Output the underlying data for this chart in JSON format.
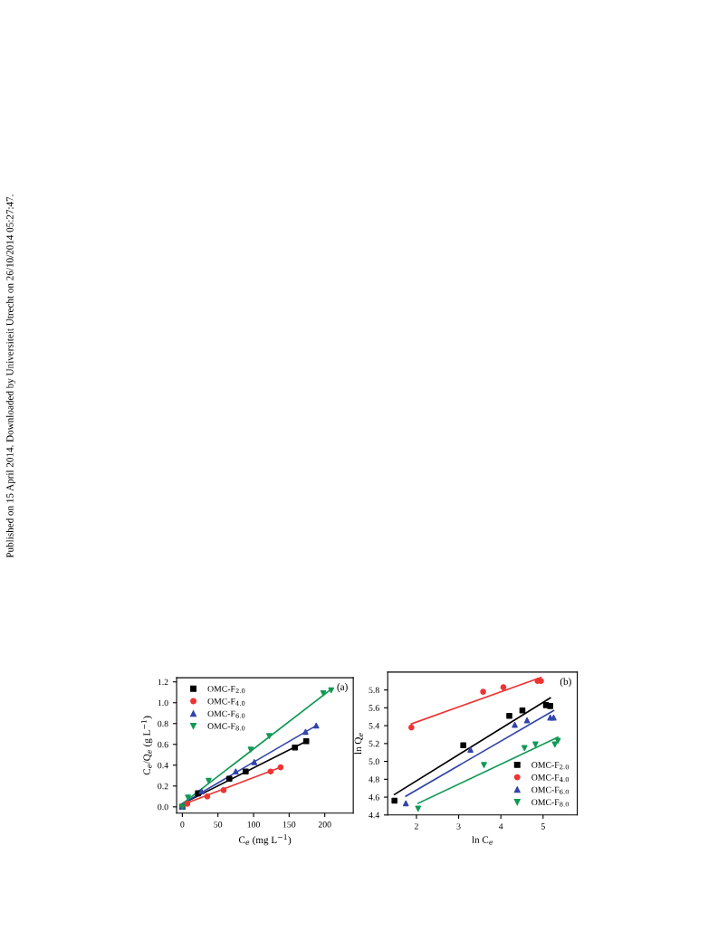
{
  "chart_data": [
    {
      "type": "scatter",
      "xlabel": "C$_{e}$ (mg L$^{−1}$)",
      "ylabel": "C$_{e}$/Q$_{e}$ (g L$^{−1}$)",
      "xlim": [
        -8,
        240
      ],
      "ylim": [
        -0.06,
        1.24
      ],
      "xticks": [
        0,
        50,
        100,
        150,
        200
      ],
      "yticks": [
        {
          "value": 0,
          "label": "0.0"
        },
        0.2,
        0.4,
        0.6,
        0.8,
        {
          "value": 1,
          "label": "1.0"
        },
        1.2
      ],
      "legend": "top left",
      "grid": false,
      "annotations": [
        "(a)",
        "Published on 15 April 2014. Downloaded by Universiteit Utrecht on 26/10/2014 05:27:47."
      ],
      "series": [
        {
          "name": "OMC-F$_{2.0}$",
          "marker": "square",
          "color": "#000000",
          "x": [
            0,
            22,
            66,
            89,
            158,
            174
          ],
          "values": [
            0,
            0.13,
            0.27,
            0.34,
            0.57,
            0.63
          ]
        },
        {
          "name": "OMC-F$_{4.0}$",
          "marker": "circle",
          "color": "#ee3333",
          "x": [
            0,
            7,
            35,
            58,
            124,
            138
          ],
          "values": [
            0,
            0.03,
            0.1,
            0.16,
            0.34,
            0.38
          ]
        },
        {
          "name": "OMC-F$_{6.0}$",
          "marker": "triangle",
          "color": "#3344aa",
          "x": [
            0,
            27,
            75,
            101,
            173,
            188
          ],
          "values": [
            0,
            0.15,
            0.34,
            0.43,
            0.72,
            0.78
          ]
        },
        {
          "name": "OMC-F$_{8.0}$",
          "marker": "triangle_down",
          "color": "#119955",
          "x": [
            0,
            8,
            37,
            96,
            122,
            198,
            209
          ],
          "values": [
            0,
            0.09,
            0.25,
            0.55,
            0.68,
            1.09,
            1.12
          ]
        },
        {
          "type": "line",
          "color": "#000000",
          "x": [
            0,
            174
          ],
          "values": [
            0.03,
            0.63
          ]
        },
        {
          "type": "line",
          "color": "#ee3333",
          "x": [
            0,
            138
          ],
          "values": [
            0.02,
            0.38
          ]
        },
        {
          "type": "line",
          "color": "#3344aa",
          "x": [
            0,
            188
          ],
          "values": [
            0.03,
            0.78
          ]
        },
        {
          "type": "line",
          "color": "#119955",
          "x": [
            0,
            209
          ],
          "values": [
            0.03,
            1.13
          ]
        }
      ]
    },
    {
      "type": "scatter",
      "xlabel": "ln C$_{e}$",
      "ylabel": "ln Q$_{e}$",
      "xlim": [
        1.32,
        5.81
      ],
      "ylim": [
        4.4,
        6.0
      ],
      "xticks": [
        2,
        3,
        4,
        5
      ],
      "yticks": [
        4.4,
        4.6,
        4.8,
        {
          "value": 5,
          "label": "5.0"
        },
        5.2,
        5.4,
        5.6,
        5.8
      ],
      "legend": "bottom right",
      "grid": false,
      "annotations": [
        "(b)"
      ],
      "series": [
        {
          "name": "OMC-F$_{2.0}$",
          "marker": "square",
          "color": "#000000",
          "x": [
            1.48,
            3.11,
            4.2,
            4.51,
            5.07,
            5.17
          ],
          "values": [
            4.56,
            5.18,
            5.51,
            5.57,
            5.63,
            5.62
          ]
        },
        {
          "name": "OMC-F$_{4.0}$",
          "marker": "circle",
          "color": "#ee3333",
          "x": [
            1.88,
            3.58,
            4.06,
            4.87,
            4.95
          ],
          "values": [
            5.38,
            5.78,
            5.83,
            5.9,
            5.9
          ]
        },
        {
          "name": "OMC-F$_{6.0}$",
          "marker": "triangle",
          "color": "#3344aa",
          "x": [
            1.75,
            3.28,
            4.33,
            4.62,
            5.17,
            5.25
          ],
          "values": [
            4.53,
            5.13,
            5.41,
            5.46,
            5.49,
            5.49
          ]
        },
        {
          "name": "OMC-F$_{8.0}$",
          "marker": "triangle_down",
          "color": "#119955",
          "x": [
            2.04,
            3.6,
            4.56,
            4.82,
            5.28,
            5.35
          ],
          "values": [
            4.47,
            4.96,
            5.15,
            5.19,
            5.19,
            5.23
          ]
        },
        {
          "type": "line",
          "color": "#000000",
          "x": [
            1.48,
            5.17
          ],
          "values": [
            4.63,
            5.71
          ]
        },
        {
          "type": "line",
          "color": "#ee3333",
          "x": [
            1.88,
            4.95
          ],
          "values": [
            5.42,
            5.94
          ]
        },
        {
          "type": "line",
          "color": "#3344aa",
          "x": [
            1.75,
            5.25
          ],
          "values": [
            4.61,
            5.57
          ]
        },
        {
          "type": "line",
          "color": "#119955",
          "x": [
            2.04,
            5.35
          ],
          "values": [
            4.53,
            5.27
          ]
        }
      ]
    }
  ]
}
